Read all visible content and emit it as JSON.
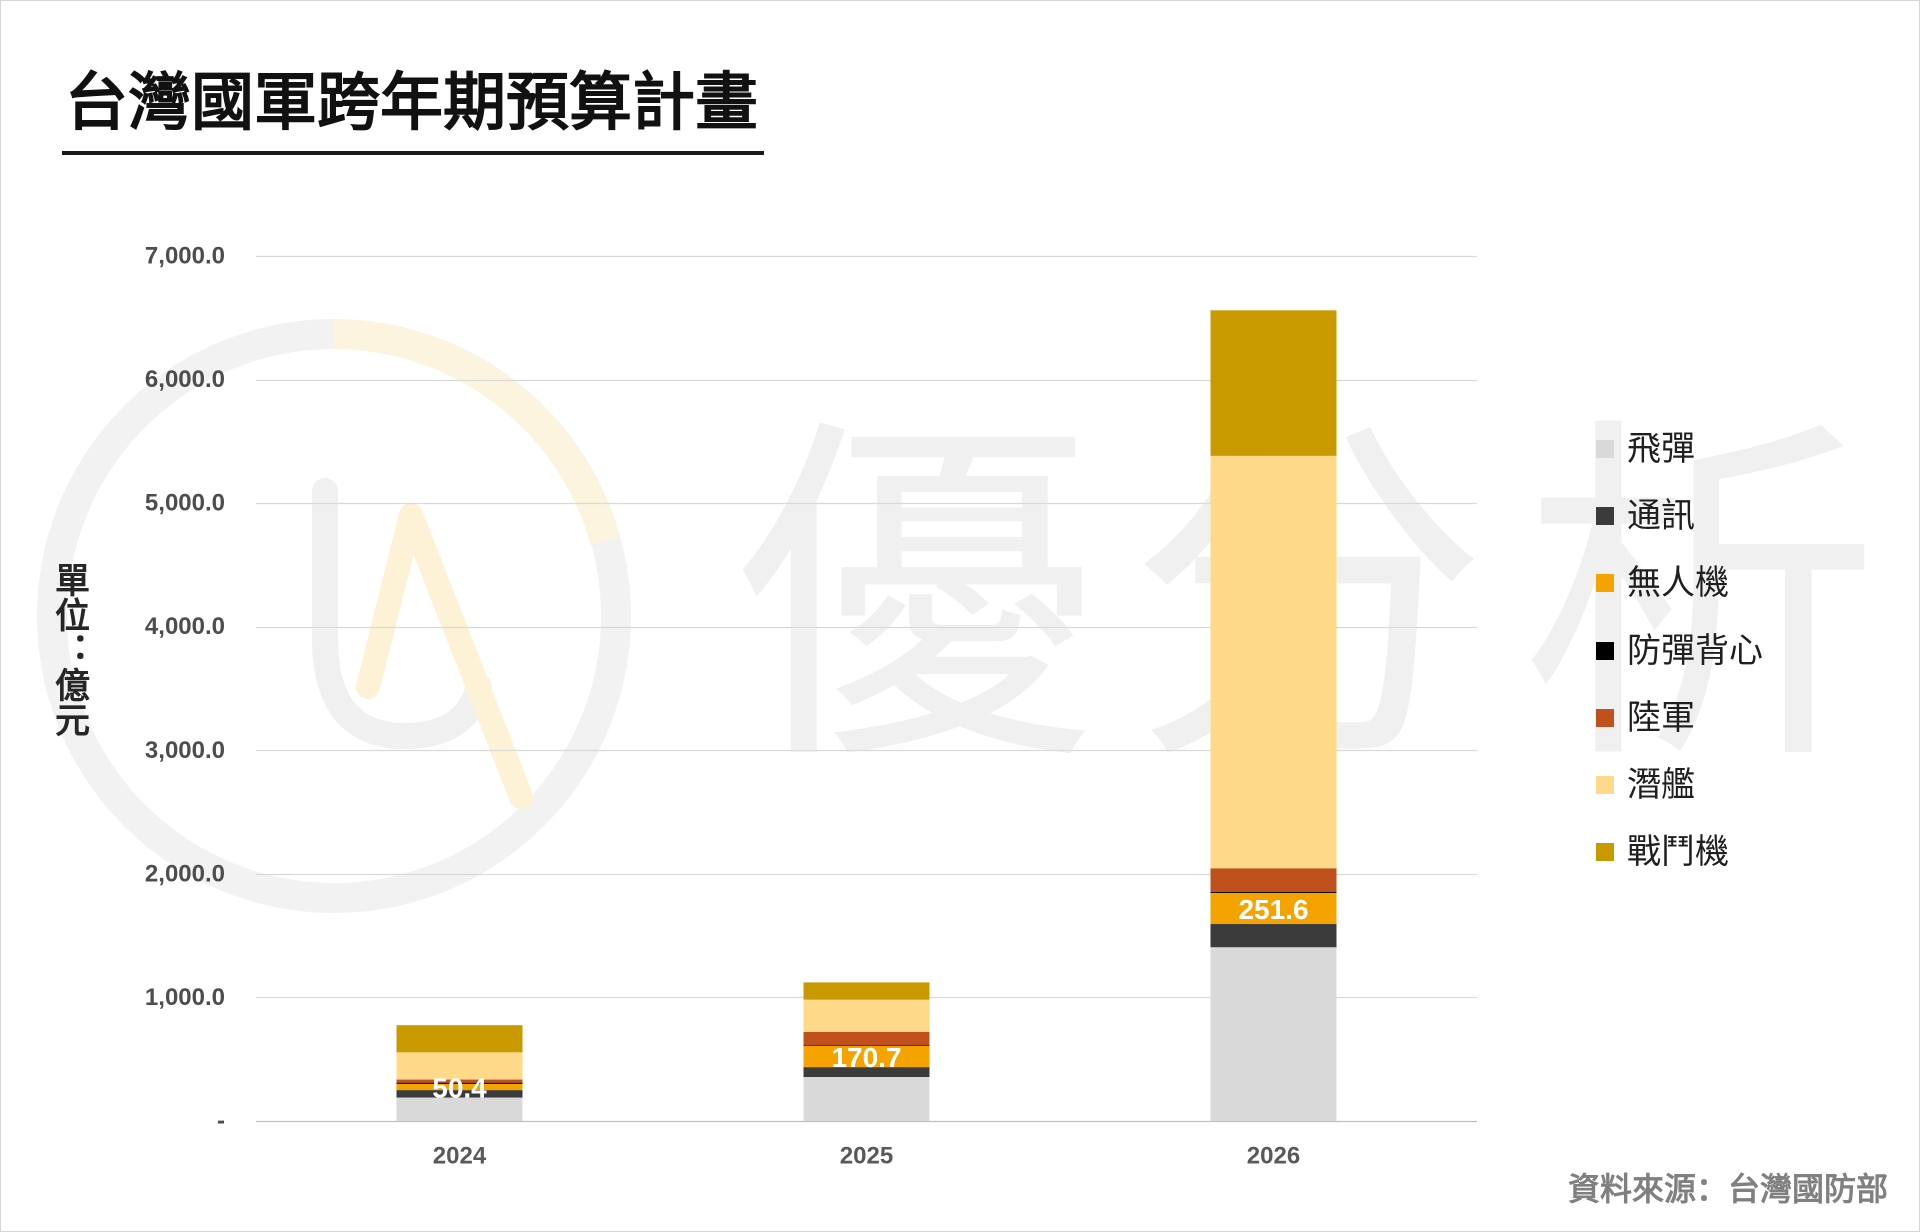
{
  "watermark": {
    "text": "優分析",
    "logo_text": "UA"
  },
  "source": "資料來源：台灣國防部",
  "chart_data": {
    "type": "bar",
    "stacked": true,
    "title": "台灣國軍跨年期預算計畫",
    "ylabel": "單位：億元",
    "categories": [
      "2024",
      "2025",
      "2026"
    ],
    "ylim": [
      0,
      7000
    ],
    "y_ticks": [
      0,
      1000,
      2000,
      3000,
      4000,
      5000,
      6000,
      7000
    ],
    "y_tick_labels": [
      "-",
      "1,000.0",
      "2,000.0",
      "3,000.0",
      "4,000.0",
      "5,000.0",
      "6,000.0",
      "7,000.0"
    ],
    "grid": true,
    "legend_position": "right",
    "series": [
      {
        "name": "飛彈",
        "color": "#d9d9d9",
        "values": [
          190,
          356,
          1406
        ]
      },
      {
        "name": "通訊",
        "color": "#3b3b3b",
        "values": [
          60,
          80,
          188
        ]
      },
      {
        "name": "無人機",
        "color": "#f5a300",
        "values": [
          50.4,
          170.7,
          251.6
        ],
        "show_data_labels": true
      },
      {
        "name": "防彈背心",
        "color": "#000000",
        "values": [
          10,
          5,
          10
        ]
      },
      {
        "name": "陸軍",
        "color": "#c0501c",
        "values": [
          25,
          110,
          190
        ]
      },
      {
        "name": "潛艦",
        "color": "#ffd98a",
        "values": [
          220,
          260,
          3337
        ]
      },
      {
        "name": "戰鬥機",
        "color": "#c99a00",
        "values": [
          220,
          140,
          1178
        ]
      }
    ]
  }
}
